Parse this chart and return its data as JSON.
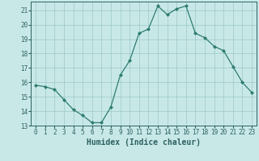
{
  "x": [
    0,
    1,
    2,
    3,
    4,
    5,
    6,
    7,
    8,
    9,
    10,
    11,
    12,
    13,
    14,
    15,
    16,
    17,
    18,
    19,
    20,
    21,
    22,
    23
  ],
  "y": [
    15.8,
    15.7,
    15.5,
    14.8,
    14.1,
    13.7,
    13.2,
    13.2,
    14.3,
    16.5,
    17.5,
    19.4,
    19.7,
    21.3,
    20.7,
    21.1,
    21.3,
    19.4,
    19.1,
    18.5,
    18.2,
    17.1,
    16.0,
    15.3
  ],
  "line_color": "#2e7d6e",
  "marker": "D",
  "marker_size": 2.0,
  "bg_color": "#c8e8e8",
  "grid_color": "#9ec8c8",
  "xlabel": "Humidex (Indice chaleur)",
  "ylim": [
    13,
    21.6
  ],
  "xlim": [
    -0.5,
    23.5
  ],
  "yticks": [
    13,
    14,
    15,
    16,
    17,
    18,
    19,
    20,
    21
  ],
  "xticks": [
    0,
    1,
    2,
    3,
    4,
    5,
    6,
    7,
    8,
    9,
    10,
    11,
    12,
    13,
    14,
    15,
    16,
    17,
    18,
    19,
    20,
    21,
    22,
    23
  ],
  "xtick_labels": [
    "0",
    "1",
    "2",
    "3",
    "4",
    "5",
    "6",
    "7",
    "8",
    "9",
    "10",
    "11",
    "12",
    "13",
    "14",
    "15",
    "16",
    "17",
    "18",
    "19",
    "20",
    "21",
    "22",
    "23"
  ],
  "tick_fontsize": 5.5,
  "xlabel_fontsize": 7.0,
  "axis_color": "#2e6060",
  "line_width": 0.9
}
